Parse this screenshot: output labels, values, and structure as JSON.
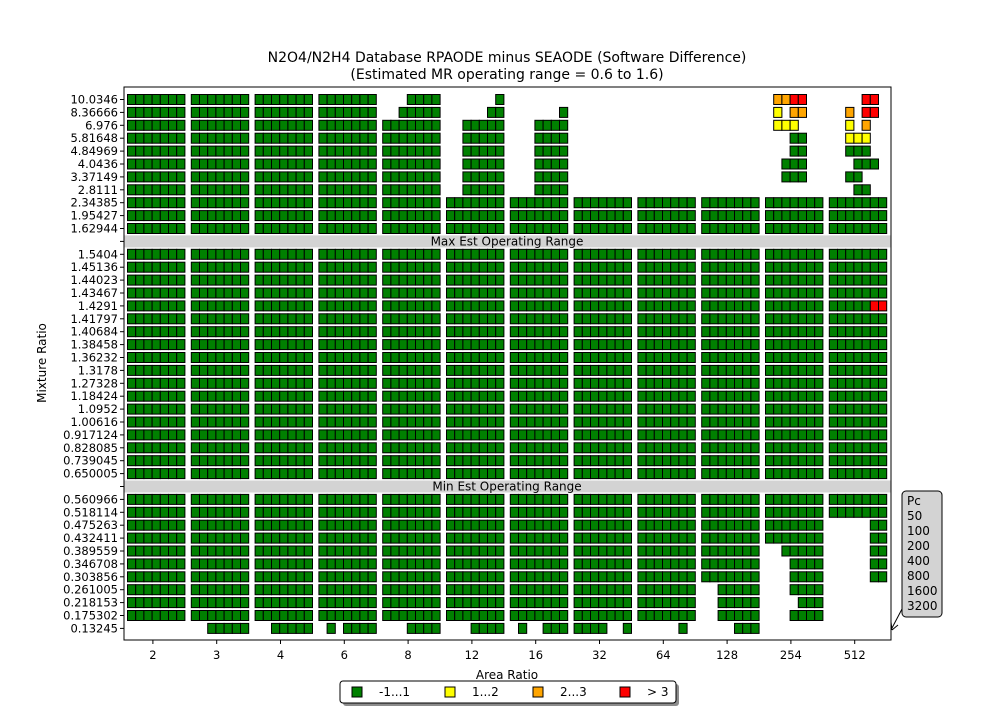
{
  "chart_data": {
    "type": "heatmap",
    "title": "N2O4/N2H4 Database RPAODE minus SEAODE (Software Difference)",
    "subtitle": "(Estimated MR operating range = 0.6 to 1.6)",
    "xlabel": "Area Ratio",
    "ylabel": "Mixture Ratio",
    "x_categories": [
      "2",
      "3",
      "4",
      "6",
      "8",
      "12",
      "16",
      "32",
      "64",
      "128",
      "254",
      "512"
    ],
    "y_categories": [
      "10.0346",
      "8.36666",
      "6.976",
      "5.81648",
      "4.84969",
      "4.0436",
      "3.37149",
      "2.8111",
      "2.34385",
      "1.95427",
      "1.62944",
      "",
      "1.5404",
      "1.45136",
      "1.44023",
      "1.43467",
      "1.4291",
      "1.41797",
      "1.40684",
      "1.38458",
      "1.36232",
      "1.3178",
      "1.27328",
      "1.18424",
      "1.0952",
      "1.00616",
      "0.917124",
      "0.828085",
      "0.739045",
      "0.650005",
      "",
      "0.560966",
      "0.518114",
      "0.475263",
      "0.432411",
      "0.389559",
      "0.346708",
      "0.303856",
      "0.261005",
      "0.218153",
      "0.175302",
      "0.13245"
    ],
    "pc_values": [
      "50",
      "100",
      "200",
      "400",
      "800",
      "1600",
      "3200"
    ],
    "pc_label": "Pc",
    "bands": [
      {
        "label": "Max Est Operating Range",
        "mixture_ratio_position": "between 1.62944 and 1.5404"
      },
      {
        "label": "Min Est Operating Range",
        "mixture_ratio_position": "between 0.650005 and 0.560966"
      }
    ],
    "legend": [
      {
        "label": "-1...1",
        "color": "#008000"
      },
      {
        "label": "1...2",
        "color": "#ffff00"
      },
      {
        "label": "2...3",
        "color": "#ffa500"
      },
      {
        "label": "> 3",
        "color": "#ff0000"
      }
    ],
    "legend_placement": "bottom-center",
    "pc_box_placement": "right",
    "grid": false,
    "cell_color_codes": {
      "0": "none",
      "1": "-1...1",
      "2": "1...2",
      "3": "2...3",
      "4": "> 3"
    },
    "rows": [
      {
        "mr": "10.0346",
        "cells": [
          "1111111",
          "1111111",
          "1111111",
          "1111111",
          "0001111",
          "0000001",
          "0000000",
          "0000000",
          "0000000",
          "0000000",
          "0334400",
          "0000440"
        ]
      },
      {
        "mr": "8.36666",
        "cells": [
          "1111111",
          "1111111",
          "1111111",
          "1111111",
          "0011111",
          "0000011",
          "0000001",
          "0000000",
          "0000000",
          "0000000",
          "0203300",
          "0030440"
        ]
      },
      {
        "mr": "6.976",
        "cells": [
          "1111111",
          "1111111",
          "1111111",
          "1111111",
          "1111111",
          "0011111",
          "0001111",
          "0000000",
          "0000000",
          "0000000",
          "0222000",
          "0020300"
        ]
      },
      {
        "mr": "5.81648",
        "cells": [
          "1111111",
          "1111111",
          "1111111",
          "1111111",
          "1111111",
          "0011111",
          "0001111",
          "0000000",
          "0000000",
          "0000000",
          "0001100",
          "0022200"
        ]
      },
      {
        "mr": "4.84969",
        "cells": [
          "1111111",
          "1111111",
          "1111111",
          "1111111",
          "1111111",
          "0011111",
          "0001111",
          "0000000",
          "0000000",
          "0000000",
          "0001100",
          "0011100"
        ]
      },
      {
        "mr": "4.0436",
        "cells": [
          "1111111",
          "1111111",
          "1111111",
          "1111111",
          "1111111",
          "0011111",
          "0001111",
          "0000000",
          "0000000",
          "0000000",
          "0011100",
          "0001110"
        ]
      },
      {
        "mr": "3.37149",
        "cells": [
          "1111111",
          "1111111",
          "1111111",
          "1111111",
          "1111111",
          "0011111",
          "0001111",
          "0000000",
          "0000000",
          "0000000",
          "0011100",
          "0011000"
        ]
      },
      {
        "mr": "2.8111",
        "cells": [
          "1111111",
          "1111111",
          "1111111",
          "1111111",
          "1111111",
          "0011111",
          "0001111",
          "0000000",
          "0000000",
          "0000000",
          "0000000",
          "0001100"
        ]
      },
      {
        "mr": "2.34385",
        "cells": [
          "1111111",
          "1111111",
          "1111111",
          "1111111",
          "1111111",
          "1111111",
          "1111111",
          "1111111",
          "1111111",
          "1111111",
          "1111111",
          "1111111"
        ]
      },
      {
        "mr": "1.95427",
        "cells": [
          "1111111",
          "1111111",
          "1111111",
          "1111111",
          "1111111",
          "1111111",
          "1111111",
          "1111111",
          "1111111",
          "1111111",
          "1111111",
          "1111111"
        ]
      },
      {
        "mr": "1.62944",
        "cells": [
          "1111111",
          "1111111",
          "1111111",
          "1111111",
          "1111111",
          "1111111",
          "1111111",
          "1111111",
          "1111111",
          "1111111",
          "1111111",
          "1111111"
        ]
      },
      {
        "mr": "",
        "cells": [
          "0000000",
          "0000000",
          "0000000",
          "0000000",
          "0000000",
          "0000000",
          "0000000",
          "0000000",
          "0000000",
          "0000000",
          "0000000",
          "0000000"
        ]
      },
      {
        "mr": "1.5404",
        "cells": [
          "1111111",
          "1111111",
          "1111111",
          "1111111",
          "1111111",
          "1111111",
          "1111111",
          "1111111",
          "1111111",
          "1111111",
          "1111111",
          "1111111"
        ]
      },
      {
        "mr": "1.45136",
        "cells": [
          "1111111",
          "1111111",
          "1111111",
          "1111111",
          "1111111",
          "1111111",
          "1111111",
          "1111111",
          "1111111",
          "1111111",
          "1111111",
          "1111111"
        ]
      },
      {
        "mr": "1.44023",
        "cells": [
          "1111111",
          "1111111",
          "1111111",
          "1111111",
          "1111111",
          "1111111",
          "1111111",
          "1111111",
          "1111111",
          "1111111",
          "1111111",
          "1111111"
        ]
      },
      {
        "mr": "1.43467",
        "cells": [
          "1111111",
          "1111111",
          "1111111",
          "1111111",
          "1111111",
          "1111111",
          "1111111",
          "1111111",
          "1111111",
          "1111111",
          "1111111",
          "1111111"
        ]
      },
      {
        "mr": "1.4291",
        "cells": [
          "1111111",
          "1111111",
          "1111111",
          "1111111",
          "1111111",
          "1111111",
          "1111111",
          "1111111",
          "1111111",
          "1111111",
          "1111111",
          "1111144"
        ]
      },
      {
        "mr": "1.41797",
        "cells": [
          "1111111",
          "1111111",
          "1111111",
          "1111111",
          "1111111",
          "1111111",
          "1111111",
          "1111111",
          "1111111",
          "1111111",
          "1111111",
          "1111111"
        ]
      },
      {
        "mr": "1.40684",
        "cells": [
          "1111111",
          "1111111",
          "1111111",
          "1111111",
          "1111111",
          "1111111",
          "1111111",
          "1111111",
          "1111111",
          "1111111",
          "1111111",
          "1111111"
        ]
      },
      {
        "mr": "1.38458",
        "cells": [
          "1111111",
          "1111111",
          "1111111",
          "1111111",
          "1111111",
          "1111111",
          "1111111",
          "1111111",
          "1111111",
          "1111111",
          "1111111",
          "1111111"
        ]
      },
      {
        "mr": "1.36232",
        "cells": [
          "1111111",
          "1111111",
          "1111111",
          "1111111",
          "1111111",
          "1111111",
          "1111111",
          "1111111",
          "1111111",
          "1111111",
          "1111111",
          "1111111"
        ]
      },
      {
        "mr": "1.3178",
        "cells": [
          "1111111",
          "1111111",
          "1111111",
          "1111111",
          "1111111",
          "1111111",
          "1111111",
          "1111111",
          "1111111",
          "1111111",
          "1111111",
          "1111111"
        ]
      },
      {
        "mr": "1.27328",
        "cells": [
          "1111111",
          "1111111",
          "1111111",
          "1111111",
          "1111111",
          "1111111",
          "1111111",
          "1111111",
          "1111111",
          "1111111",
          "1111111",
          "1111111"
        ]
      },
      {
        "mr": "1.18424",
        "cells": [
          "1111111",
          "1111111",
          "1111111",
          "1111111",
          "1111111",
          "1111111",
          "1111111",
          "1111111",
          "1111111",
          "1111111",
          "1111111",
          "1111111"
        ]
      },
      {
        "mr": "1.0952",
        "cells": [
          "1111111",
          "1111111",
          "1111111",
          "1111111",
          "1111111",
          "1111111",
          "1111111",
          "1111111",
          "1111111",
          "1111111",
          "1111111",
          "1111111"
        ]
      },
      {
        "mr": "1.00616",
        "cells": [
          "1111111",
          "1111111",
          "1111111",
          "1111111",
          "1111111",
          "1111111",
          "1111111",
          "1111111",
          "1111111",
          "1111111",
          "1111111",
          "1111111"
        ]
      },
      {
        "mr": "0.917124",
        "cells": [
          "1111111",
          "1111111",
          "1111111",
          "1111111",
          "1111111",
          "1111111",
          "1111111",
          "1111111",
          "1111111",
          "1111111",
          "1111111",
          "1111111"
        ]
      },
      {
        "mr": "0.828085",
        "cells": [
          "1111111",
          "1111111",
          "1111111",
          "1111111",
          "1111111",
          "1111111",
          "1111111",
          "1111111",
          "1111111",
          "1111111",
          "1111111",
          "1111111"
        ]
      },
      {
        "mr": "0.739045",
        "cells": [
          "1111111",
          "1111111",
          "1111111",
          "1111111",
          "1111111",
          "1111111",
          "1111111",
          "1111111",
          "1111111",
          "1111111",
          "1111111",
          "1111111"
        ]
      },
      {
        "mr": "0.650005",
        "cells": [
          "1111111",
          "1111111",
          "1111111",
          "1111111",
          "1111111",
          "1111111",
          "1111111",
          "1111111",
          "1111111",
          "1111111",
          "1111111",
          "1111111"
        ]
      },
      {
        "mr": "",
        "cells": [
          "0000000",
          "0000000",
          "0000000",
          "0000000",
          "0000000",
          "0000000",
          "0000000",
          "0000000",
          "0000000",
          "0000000",
          "0000000",
          "0000000"
        ]
      },
      {
        "mr": "0.560966",
        "cells": [
          "1111111",
          "1111111",
          "1111111",
          "1111111",
          "1111111",
          "1111111",
          "1111111",
          "1111111",
          "1111111",
          "1111111",
          "1111111",
          "1111111"
        ]
      },
      {
        "mr": "0.518114",
        "cells": [
          "1111111",
          "1111111",
          "1111111",
          "1111111",
          "1111111",
          "1111111",
          "1111111",
          "1111111",
          "1111111",
          "1111111",
          "1111111",
          "1111111"
        ]
      },
      {
        "mr": "0.475263",
        "cells": [
          "1111111",
          "1111111",
          "1111111",
          "1111111",
          "1111111",
          "1111111",
          "1111111",
          "1111111",
          "1111111",
          "1111111",
          "1111111",
          "0000011"
        ]
      },
      {
        "mr": "0.432411",
        "cells": [
          "1111111",
          "1111111",
          "1111111",
          "1111111",
          "1111111",
          "1111111",
          "1111111",
          "1111111",
          "1111111",
          "1111111",
          "1111111",
          "0000011"
        ]
      },
      {
        "mr": "0.389559",
        "cells": [
          "1111111",
          "1111111",
          "1111111",
          "1111111",
          "1111111",
          "1111111",
          "1111111",
          "1111111",
          "1111111",
          "1111111",
          "0011111",
          "0000011"
        ]
      },
      {
        "mr": "0.346708",
        "cells": [
          "1111111",
          "1111111",
          "1111111",
          "1111111",
          "1111111",
          "1111111",
          "1111111",
          "1111111",
          "1111111",
          "1111111",
          "0001111",
          "0000011"
        ]
      },
      {
        "mr": "0.303856",
        "cells": [
          "1111111",
          "1111111",
          "1111111",
          "1111111",
          "1111111",
          "1111111",
          "1111111",
          "1111111",
          "1111111",
          "1111111",
          "0001111",
          "0000011"
        ]
      },
      {
        "mr": "0.261005",
        "cells": [
          "1111111",
          "1111111",
          "1111111",
          "1111111",
          "1111111",
          "1111111",
          "1111111",
          "1111111",
          "1111111",
          "0011111",
          "0001111",
          "0000000"
        ]
      },
      {
        "mr": "0.218153",
        "cells": [
          "1111111",
          "1111111",
          "1111111",
          "1111111",
          "1111111",
          "1111111",
          "1111111",
          "1111111",
          "1111111",
          "0011111",
          "0000111",
          "0000000"
        ]
      },
      {
        "mr": "0.175302",
        "cells": [
          "1111111",
          "1111111",
          "1111111",
          "1111111",
          "1111111",
          "1111111",
          "1111111",
          "1111111",
          "1111111",
          "0011111",
          "0001111",
          "0000000"
        ]
      },
      {
        "mr": "0.13245",
        "cells": [
          "0000000",
          "0011111",
          "0011111",
          "0101111",
          "0001111",
          "0001111",
          "0100111",
          "1111001",
          "0000010",
          "0000111",
          "0000000",
          "0000000"
        ]
      }
    ]
  }
}
